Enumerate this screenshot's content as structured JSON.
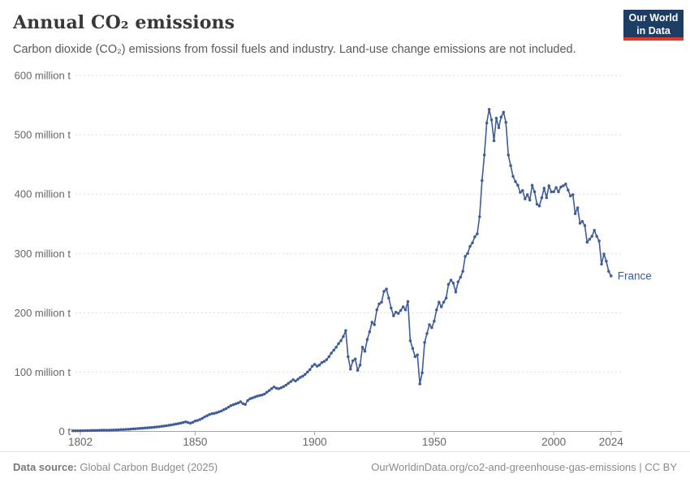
{
  "header": {
    "title": "Annual CO₂ emissions",
    "subtitle": "Carbon dioxide (CO₂) emissions from fossil fuels and industry. Land-use change emissions are not included.",
    "logo": {
      "line1": "Our World",
      "line2": "in Data",
      "bg_color": "#1d3d63",
      "accent_color": "#dc3a2f"
    }
  },
  "footer": {
    "source_label": "Data source:",
    "source_value": " Global Carbon Budget (2025)",
    "rights": "OurWorldinData.org/co2-and-greenhouse-gas-emissions | CC BY"
  },
  "chart_data": {
    "type": "line",
    "title": "Annual CO₂ emissions",
    "entity_label": "France",
    "unit": "million t",
    "line_color": "#3e5c97",
    "grid_color": "#dcdcdc",
    "axis_color": "#a3a3a3",
    "tick_label_color": "#666666",
    "legend_position": "line-end",
    "grid": "dashed-horizontal",
    "xlabel": "",
    "ylabel": "",
    "ylim": [
      0,
      600
    ],
    "y_ticks": [
      {
        "value": 0,
        "label": "0 t"
      },
      {
        "value": 100,
        "label": "100 million t"
      },
      {
        "value": 200,
        "label": "200 million t"
      },
      {
        "value": 300,
        "label": "300 million t"
      },
      {
        "value": 400,
        "label": "400 million t"
      },
      {
        "value": 500,
        "label": "500 million t"
      },
      {
        "value": 600,
        "label": "600 million t"
      }
    ],
    "x_ticks": [
      1802,
      1850,
      1900,
      1950,
      2000,
      2024
    ],
    "start_year": 1799,
    "end_year": 2024,
    "values": [
      1,
      1,
      1.1,
      1.2,
      1.2,
      1.3,
      1.4,
      1.5,
      1.6,
      1.7,
      1.8,
      1.9,
      2,
      2.1,
      2.1,
      2,
      2.2,
      2.4,
      2.6,
      2.8,
      3,
      3.2,
      3.4,
      3.6,
      3.9,
      4.2,
      4.5,
      4.8,
      5.1,
      5.4,
      5.7,
      6,
      6.3,
      6.7,
      7.1,
      7.5,
      8,
      8.5,
      9,
      9.6,
      10.2,
      10.9,
      11.6,
      12.4,
      13.2,
      14.1,
      15,
      16,
      15,
      13.8,
      15.5,
      17.5,
      18.5,
      20,
      22,
      24.5,
      26.5,
      28.5,
      30,
      30.5,
      31.5,
      33,
      34.5,
      36.5,
      38.5,
      41,
      43.5,
      45,
      46.5,
      48,
      50,
      47,
      45.5,
      52,
      55,
      56.5,
      58,
      59.5,
      60.5,
      61.5,
      63,
      66,
      69,
      72,
      75,
      73,
      72,
      73.5,
      75.5,
      78,
      81,
      84,
      87,
      85,
      88,
      91,
      93,
      96,
      100,
      104,
      110,
      113,
      110,
      112,
      116,
      118,
      121,
      126,
      132,
      137,
      142,
      148,
      153,
      160,
      170,
      126,
      105,
      119,
      122,
      103,
      112,
      142,
      135,
      155,
      168,
      184,
      180,
      205,
      215,
      218,
      236,
      240,
      225,
      208,
      195,
      201,
      199,
      204,
      210,
      205,
      219,
      153,
      140,
      126,
      129,
      80,
      99,
      150,
      165,
      180,
      175,
      186,
      205,
      218,
      210,
      218,
      225,
      248,
      255,
      250,
      235,
      252,
      260,
      270,
      295,
      300,
      312,
      318,
      328,
      333,
      362,
      423,
      466,
      520,
      543,
      525,
      490,
      528,
      512,
      530,
      538,
      521,
      466,
      448,
      430,
      421,
      415,
      403,
      406,
      392,
      399,
      390,
      415,
      404,
      383,
      380,
      394,
      410,
      394,
      414,
      404,
      404,
      411,
      404,
      412,
      414,
      417,
      407,
      397,
      399,
      367,
      377,
      351,
      354,
      347,
      319,
      324,
      329,
      339,
      329,
      321,
      282,
      299,
      287,
      270,
      262
    ]
  }
}
